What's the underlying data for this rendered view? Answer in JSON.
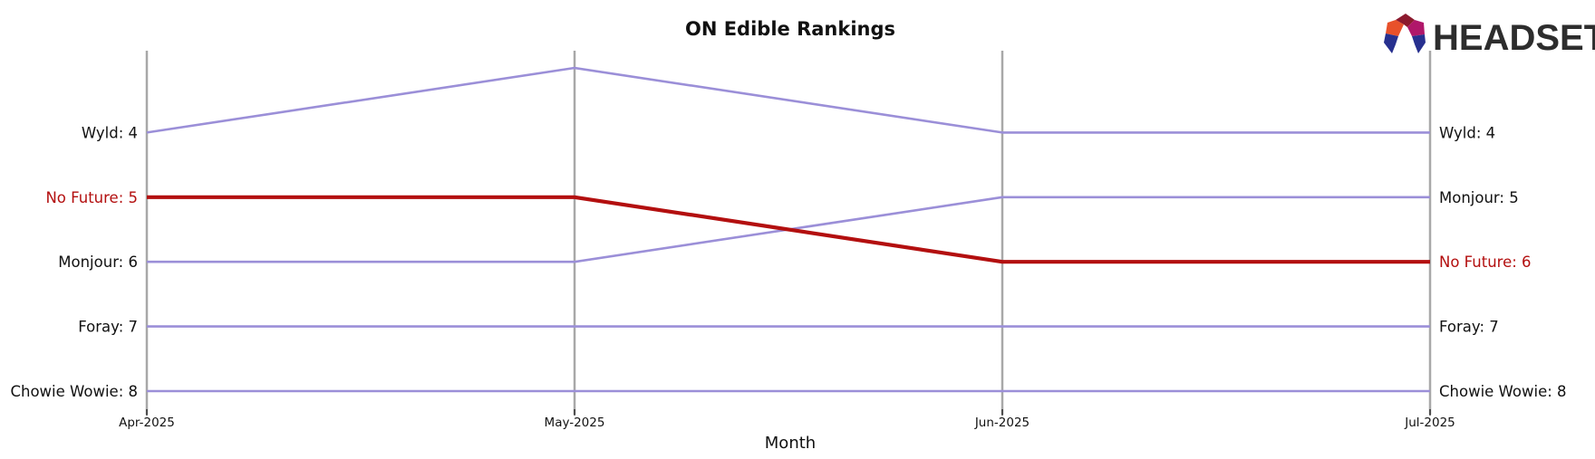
{
  "chart_data": {
    "type": "line",
    "title": "ON Edible Rankings",
    "xlabel": "Month",
    "ylabel": "",
    "x": [
      "Apr-2025",
      "May-2025",
      "Jun-2025",
      "Jul-2025"
    ],
    "ylim": [
      8,
      3
    ],
    "y_inverted": true,
    "grid": "vertical lines at each month",
    "series": [
      {
        "name": "Wyld",
        "values": [
          4,
          3,
          4,
          4
        ],
        "color": "#9b8fd8",
        "highlight": false
      },
      {
        "name": "No Future",
        "values": [
          5,
          5,
          6,
          6
        ],
        "color": "#b30f0f",
        "highlight": true
      },
      {
        "name": "Monjour",
        "values": [
          6,
          6,
          5,
          5
        ],
        "color": "#9b8fd8",
        "highlight": false
      },
      {
        "name": "Foray",
        "values": [
          7,
          7,
          7,
          7
        ],
        "color": "#9b8fd8",
        "highlight": false
      },
      {
        "name": "Chowie Wowie",
        "values": [
          8,
          8,
          8,
          8
        ],
        "color": "#9b8fd8",
        "highlight": false
      }
    ],
    "left_labels": [
      "Wyld: 4",
      "No Future: 5",
      "Monjour: 6",
      "Foray: 7",
      "Chowie Wowie: 8"
    ],
    "right_labels": [
      "Wyld: 4",
      "Monjour: 5",
      "No Future: 6",
      "Foray: 7",
      "Chowie Wowie: 8"
    ]
  },
  "logo": {
    "text": "HEADSET"
  },
  "colors": {
    "highlight": "#b30f0f",
    "other": "#9b8fd8",
    "grid": "#a8a8a8",
    "logo_text": "#2d2d2d"
  }
}
